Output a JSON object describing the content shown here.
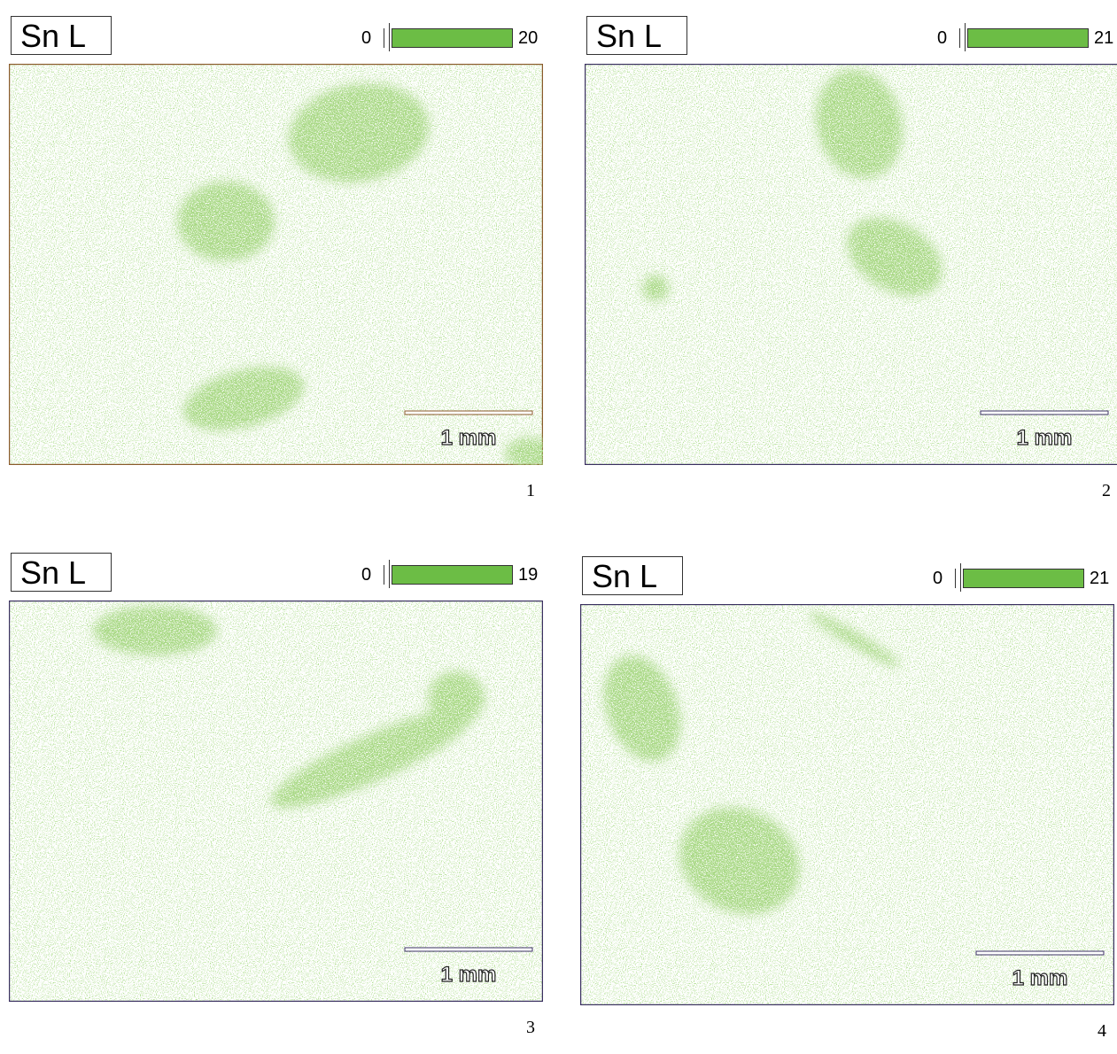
{
  "panels": [
    {
      "element": "Sn L",
      "scale_min": 0,
      "scale_max": 20,
      "scale_bar": "1 mm",
      "number": "1"
    },
    {
      "element": "Sn L",
      "scale_min": 0,
      "scale_max": 21,
      "scale_bar": "1 mm",
      "number": "2"
    },
    {
      "element": "Sn L",
      "scale_min": 0,
      "scale_max": 19,
      "scale_bar": "1 mm",
      "number": "3"
    },
    {
      "element": "Sn L",
      "scale_min": 0,
      "scale_max": 21,
      "scale_bar": "1 mm",
      "number": "4"
    }
  ]
}
